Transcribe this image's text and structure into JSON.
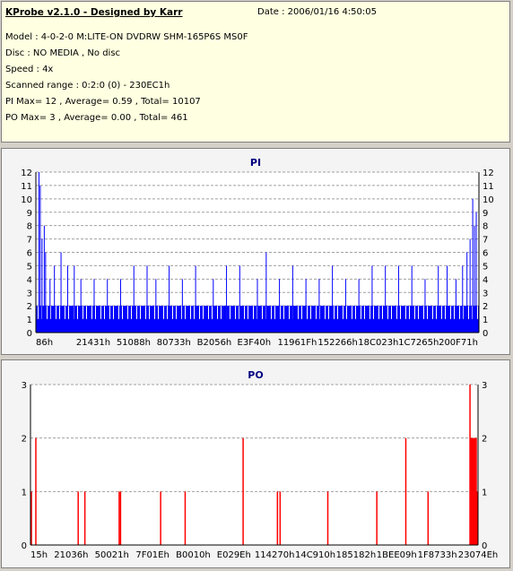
{
  "info": {
    "title": "KProbe v2.1.0 - Designed by Karr",
    "date": "Date : 2006/01/16 4:50:05",
    "model": "Model : 4-0-2-0 M:LITE-ON DVDRW SHM-165P6S MS0F",
    "disc": "Disc : NO MEDIA , No disc",
    "speed": "Speed : 4x",
    "range": "Scanned range : 0:2:0 (0) - 230EC1h",
    "pi": "PI Max= 12 , Average= 0.59 , Total= 10107",
    "po": "PO Max= 3 , Average= 0.00 , Total= 461"
  },
  "colors": {
    "pi": "#0000ff",
    "po": "#ff0000",
    "title": "#000080",
    "bg": "#f4f4f4"
  },
  "chart_data": [
    {
      "type": "bar",
      "title": "PI",
      "ylim": [
        0,
        12
      ],
      "yticks": [
        0,
        1,
        2,
        3,
        4,
        5,
        6,
        7,
        8,
        9,
        10,
        11,
        12
      ],
      "xlabels": [
        "86h",
        "21431h",
        "51088h",
        "80733h",
        "B2056h",
        "E3F40h",
        "11961Fh",
        "152266h",
        "18C023h",
        "1C7265h",
        "200F71h"
      ],
      "base_pattern": [
        2,
        2,
        1,
        2,
        2,
        2,
        1,
        2,
        2,
        2
      ],
      "spikes": [
        {
          "pos": 0.005,
          "v": 12
        },
        {
          "pos": 0.008,
          "v": 11
        },
        {
          "pos": 0.012,
          "v": 7
        },
        {
          "pos": 0.017,
          "v": 8
        },
        {
          "pos": 0.02,
          "v": 6
        },
        {
          "pos": 0.03,
          "v": 4
        },
        {
          "pos": 0.04,
          "v": 5
        },
        {
          "pos": 0.055,
          "v": 6
        },
        {
          "pos": 0.07,
          "v": 5
        },
        {
          "pos": 0.085,
          "v": 5
        },
        {
          "pos": 0.1,
          "v": 4
        },
        {
          "pos": 0.13,
          "v": 4
        },
        {
          "pos": 0.16,
          "v": 4
        },
        {
          "pos": 0.19,
          "v": 4
        },
        {
          "pos": 0.22,
          "v": 5
        },
        {
          "pos": 0.25,
          "v": 5
        },
        {
          "pos": 0.27,
          "v": 4
        },
        {
          "pos": 0.3,
          "v": 5
        },
        {
          "pos": 0.33,
          "v": 4
        },
        {
          "pos": 0.36,
          "v": 5
        },
        {
          "pos": 0.4,
          "v": 4
        },
        {
          "pos": 0.43,
          "v": 5
        },
        {
          "pos": 0.46,
          "v": 5
        },
        {
          "pos": 0.5,
          "v": 4
        },
        {
          "pos": 0.52,
          "v": 6
        },
        {
          "pos": 0.55,
          "v": 4
        },
        {
          "pos": 0.58,
          "v": 5
        },
        {
          "pos": 0.61,
          "v": 4
        },
        {
          "pos": 0.64,
          "v": 4
        },
        {
          "pos": 0.67,
          "v": 5
        },
        {
          "pos": 0.7,
          "v": 4
        },
        {
          "pos": 0.73,
          "v": 4
        },
        {
          "pos": 0.76,
          "v": 5
        },
        {
          "pos": 0.79,
          "v": 5
        },
        {
          "pos": 0.82,
          "v": 5
        },
        {
          "pos": 0.85,
          "v": 5
        },
        {
          "pos": 0.88,
          "v": 4
        },
        {
          "pos": 0.91,
          "v": 5
        },
        {
          "pos": 0.93,
          "v": 5
        },
        {
          "pos": 0.95,
          "v": 4
        },
        {
          "pos": 0.965,
          "v": 5
        },
        {
          "pos": 0.975,
          "v": 6
        },
        {
          "pos": 0.982,
          "v": 7
        },
        {
          "pos": 0.988,
          "v": 10
        },
        {
          "pos": 0.992,
          "v": 8
        },
        {
          "pos": 0.996,
          "v": 9
        }
      ]
    },
    {
      "type": "bar",
      "title": "PO",
      "ylim": [
        0,
        3
      ],
      "yticks": [
        0,
        1,
        2,
        3
      ],
      "xlabels": [
        "15h",
        "21036h",
        "50021h",
        "7F01Eh",
        "B0010h",
        "E029Eh",
        "114270h",
        "14C910h",
        "185182h",
        "1BEE09h",
        "1F8733h",
        "23074Eh"
      ],
      "spikes": [
        {
          "pos": 0.0,
          "v": 1
        },
        {
          "pos": 0.01,
          "v": 2
        },
        {
          "pos": 0.105,
          "v": 1
        },
        {
          "pos": 0.12,
          "v": 1
        },
        {
          "pos": 0.197,
          "v": 1
        },
        {
          "pos": 0.2,
          "v": 1
        },
        {
          "pos": 0.29,
          "v": 1
        },
        {
          "pos": 0.345,
          "v": 1
        },
        {
          "pos": 0.475,
          "v": 2
        },
        {
          "pos": 0.552,
          "v": 1
        },
        {
          "pos": 0.558,
          "v": 1
        },
        {
          "pos": 0.665,
          "v": 1
        },
        {
          "pos": 0.775,
          "v": 1
        },
        {
          "pos": 0.84,
          "v": 2
        },
        {
          "pos": 0.89,
          "v": 1
        },
        {
          "pos": 0.984,
          "v": 3
        },
        {
          "pos": 0.986,
          "v": 2
        },
        {
          "pos": 0.988,
          "v": 2
        },
        {
          "pos": 0.99,
          "v": 2
        },
        {
          "pos": 0.992,
          "v": 2
        },
        {
          "pos": 0.994,
          "v": 2
        },
        {
          "pos": 0.996,
          "v": 2
        },
        {
          "pos": 0.998,
          "v": 2
        },
        {
          "pos": 1.0,
          "v": 1
        }
      ]
    }
  ]
}
